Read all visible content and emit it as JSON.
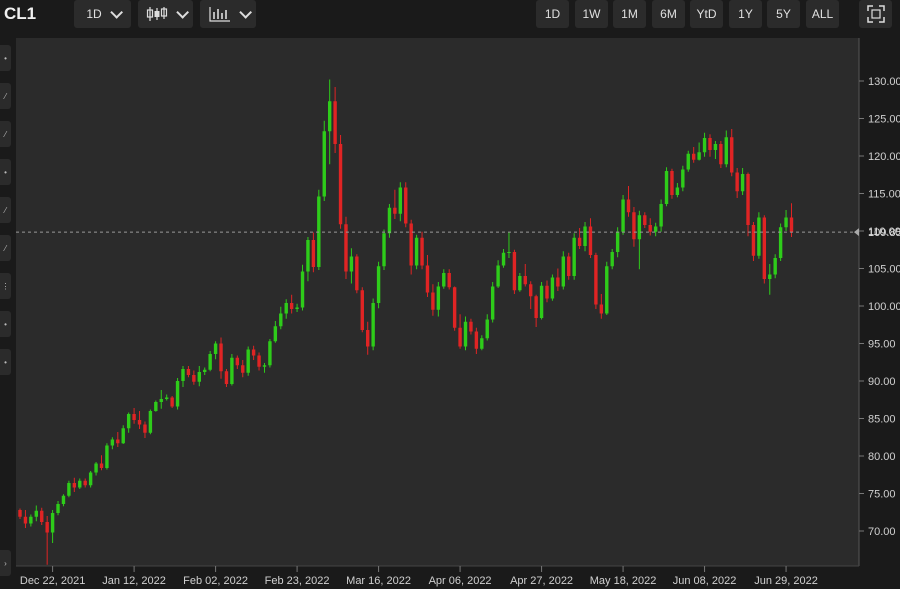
{
  "toolbar": {
    "symbol": "CL1",
    "interval_label": "1D",
    "ranges": [
      "1D",
      "1W",
      "1M",
      "6M",
      "YtD",
      "1Y",
      "5Y",
      "ALL"
    ]
  },
  "icons": {
    "candlestick": "candlestick-icon",
    "indicator": "indicator-icon",
    "fullscreen": "fullscreen-icon"
  },
  "colors": {
    "up": "#2ecc1a",
    "down": "#e02424",
    "background": "#2b2b2b",
    "grid": "#3a3a3a"
  },
  "chart_data": {
    "type": "candlestick",
    "ylim": [
      64,
      134
    ],
    "yticks": [
      70,
      75,
      80,
      85,
      90,
      95,
      100,
      105,
      110,
      115,
      120,
      125,
      130
    ],
    "xtick_labels": [
      "Dec 22, 2021",
      "Jan 12, 2022",
      "Feb 02, 2022",
      "Feb 23, 2022",
      "Mar 16, 2022",
      "Apr 06, 2022",
      "Apr 27, 2022",
      "May 18, 2022",
      "Jun 08, 2022",
      "Jun 29, 2022"
    ],
    "xtick_index": [
      6,
      21,
      36,
      51,
      66,
      81,
      96,
      111,
      126,
      141
    ],
    "last_price": "109.85",
    "last_value": 109.85,
    "grid": false,
    "candles": [
      [
        72.8,
        73.0,
        71.6,
        71.9
      ],
      [
        71.9,
        72.8,
        70.4,
        71.0
      ],
      [
        71.0,
        72.2,
        70.6,
        71.9
      ],
      [
        71.9,
        73.4,
        71.3,
        72.7
      ],
      [
        72.7,
        73.1,
        70.8,
        71.2
      ],
      [
        71.2,
        72.0,
        65.5,
        69.8
      ],
      [
        69.8,
        72.8,
        68.4,
        72.4
      ],
      [
        72.4,
        74.0,
        72.1,
        73.6
      ],
      [
        73.6,
        74.9,
        73.3,
        74.7
      ],
      [
        74.7,
        76.7,
        74.5,
        76.4
      ],
      [
        76.4,
        77.1,
        75.2,
        75.8
      ],
      [
        75.8,
        77.0,
        75.6,
        76.7
      ],
      [
        76.7,
        77.0,
        75.8,
        76.1
      ],
      [
        76.1,
        78.0,
        75.8,
        77.8
      ],
      [
        77.8,
        79.2,
        77.4,
        79.0
      ],
      [
        79.0,
        80.1,
        78.1,
        78.4
      ],
      [
        78.4,
        81.7,
        78.2,
        81.4
      ],
      [
        81.4,
        82.5,
        80.9,
        82.2
      ],
      [
        82.2,
        83.2,
        81.2,
        81.7
      ],
      [
        81.7,
        84.1,
        81.6,
        83.7
      ],
      [
        83.7,
        85.8,
        83.1,
        85.6
      ],
      [
        85.6,
        86.4,
        84.3,
        84.8
      ],
      [
        84.8,
        86.0,
        83.6,
        84.2
      ],
      [
        84.2,
        84.6,
        82.4,
        83.1
      ],
      [
        83.1,
        86.2,
        82.9,
        86.0
      ],
      [
        86.0,
        87.4,
        85.9,
        87.2
      ],
      [
        87.2,
        88.8,
        86.3,
        87.6
      ],
      [
        87.6,
        88.2,
        87.4,
        87.8
      ],
      [
        87.8,
        88.0,
        86.4,
        86.6
      ],
      [
        86.6,
        90.4,
        86.2,
        90.0
      ],
      [
        90.0,
        92.0,
        89.2,
        91.6
      ],
      [
        91.6,
        92.0,
        90.5,
        90.8
      ],
      [
        90.8,
        91.4,
        89.5,
        89.9
      ],
      [
        89.9,
        92.0,
        89.3,
        91.2
      ],
      [
        91.2,
        91.8,
        90.8,
        91.5
      ],
      [
        91.5,
        94.0,
        91.3,
        93.6
      ],
      [
        93.6,
        95.3,
        92.9,
        95.0
      ],
      [
        95.0,
        95.8,
        90.3,
        91.3
      ],
      [
        91.3,
        91.6,
        89.2,
        89.6
      ],
      [
        89.6,
        93.6,
        89.4,
        93.1
      ],
      [
        93.1,
        93.4,
        91.6,
        92.1
      ],
      [
        92.1,
        92.8,
        90.5,
        91.1
      ],
      [
        91.1,
        94.6,
        90.7,
        94.2
      ],
      [
        94.2,
        94.7,
        92.8,
        93.4
      ],
      [
        93.4,
        93.8,
        91.4,
        91.9
      ],
      [
        91.9,
        92.4,
        91.1,
        92.1
      ],
      [
        92.1,
        95.6,
        91.8,
        95.3
      ],
      [
        95.3,
        98.0,
        95.1,
        97.3
      ],
      [
        97.3,
        99.9,
        96.9,
        99.0
      ],
      [
        99.0,
        100.9,
        98.3,
        100.4
      ],
      [
        100.4,
        101.5,
        99.0,
        99.6
      ],
      [
        99.6,
        100.3,
        99.2,
        99.8
      ],
      [
        99.8,
        105.5,
        99.4,
        104.6
      ],
      [
        104.6,
        109.2,
        103.3,
        108.8
      ],
      [
        108.8,
        109.8,
        104.5,
        105.2
      ],
      [
        105.2,
        115.5,
        104.8,
        114.6
      ],
      [
        114.6,
        124.7,
        114.0,
        123.3
      ],
      [
        123.3,
        130.2,
        118.9,
        127.3
      ],
      [
        127.3,
        129.2,
        120.4,
        121.6
      ],
      [
        121.6,
        122.8,
        110.3,
        110.9
      ],
      [
        110.9,
        111.9,
        103.6,
        104.6
      ],
      [
        104.6,
        107.7,
        103.0,
        106.6
      ],
      [
        106.6,
        106.9,
        101.7,
        102.1
      ],
      [
        102.1,
        102.5,
        96.5,
        96.8
      ],
      [
        96.8,
        97.9,
        93.5,
        94.6
      ],
      [
        94.6,
        101.0,
        94.1,
        100.4
      ],
      [
        100.4,
        105.9,
        99.7,
        105.3
      ],
      [
        105.3,
        110.2,
        104.8,
        109.7
      ],
      [
        109.7,
        113.6,
        109.1,
        113.1
      ],
      [
        113.1,
        115.5,
        111.6,
        112.3
      ],
      [
        112.3,
        116.5,
        111.3,
        115.8
      ],
      [
        115.8,
        116.5,
        110.5,
        111.0
      ],
      [
        111.0,
        111.5,
        104.2,
        105.4
      ],
      [
        105.4,
        109.5,
        104.9,
        109.1
      ],
      [
        109.1,
        109.9,
        104.9,
        105.4
      ],
      [
        105.4,
        106.8,
        101.2,
        101.8
      ],
      [
        101.8,
        102.9,
        98.7,
        99.5
      ],
      [
        99.5,
        103.2,
        98.6,
        102.6
      ],
      [
        102.6,
        104.9,
        102.3,
        104.4
      ],
      [
        104.4,
        104.9,
        102.2,
        102.5
      ],
      [
        102.5,
        102.6,
        96.7,
        97.1
      ],
      [
        97.1,
        98.9,
        94.3,
        94.6
      ],
      [
        94.6,
        98.6,
        94.1,
        97.9
      ],
      [
        97.9,
        98.3,
        96.2,
        96.6
      ],
      [
        96.6,
        97.1,
        93.6,
        94.3
      ],
      [
        94.3,
        96.1,
        94.1,
        95.7
      ],
      [
        95.7,
        98.9,
        95.4,
        98.2
      ],
      [
        98.2,
        103.2,
        97.8,
        102.6
      ],
      [
        102.6,
        106.1,
        102.4,
        105.4
      ],
      [
        105.4,
        107.6,
        105.1,
        107.1
      ],
      [
        107.1,
        109.8,
        106.4,
        107.2
      ],
      [
        107.2,
        107.5,
        101.6,
        102.1
      ],
      [
        102.1,
        104.4,
        101.9,
        104.0
      ],
      [
        104.0,
        105.6,
        102.6,
        102.9
      ],
      [
        102.9,
        103.3,
        99.6,
        101.3
      ],
      [
        101.3,
        101.5,
        97.2,
        98.4
      ],
      [
        98.4,
        103.2,
        98.2,
        102.7
      ],
      [
        102.7,
        103.4,
        100.5,
        101.0
      ],
      [
        101.0,
        104.2,
        100.7,
        103.8
      ],
      [
        103.8,
        105.0,
        102.0,
        102.6
      ],
      [
        102.6,
        107.3,
        102.2,
        106.6
      ],
      [
        106.6,
        107.1,
        103.5,
        104.0
      ],
      [
        104.0,
        109.7,
        103.5,
        109.1
      ],
      [
        109.1,
        110.4,
        107.6,
        108.0
      ],
      [
        108.0,
        111.2,
        107.3,
        110.6
      ],
      [
        110.6,
        111.7,
        106.4,
        106.8
      ],
      [
        106.8,
        107.1,
        99.6,
        100.2
      ],
      [
        100.2,
        101.6,
        98.3,
        99.0
      ],
      [
        99.0,
        105.9,
        98.8,
        105.3
      ],
      [
        105.3,
        107.6,
        104.9,
        107.2
      ],
      [
        107.2,
        110.5,
        106.5,
        109.9
      ],
      [
        109.9,
        114.8,
        109.5,
        114.2
      ],
      [
        114.2,
        116.0,
        111.9,
        112.5
      ],
      [
        112.5,
        113.2,
        107.9,
        108.9
      ],
      [
        108.9,
        112.7,
        104.9,
        112.1
      ],
      [
        112.1,
        112.5,
        110.4,
        110.8
      ],
      [
        110.8,
        111.7,
        109.4,
        109.9
      ],
      [
        109.9,
        111.1,
        109.3,
        110.6
      ],
      [
        110.6,
        114.2,
        109.9,
        113.6
      ],
      [
        113.6,
        118.5,
        113.3,
        118.0
      ],
      [
        118.0,
        118.3,
        114.3,
        114.8
      ],
      [
        114.8,
        116.4,
        114.5,
        115.8
      ],
      [
        115.8,
        118.7,
        115.3,
        118.2
      ],
      [
        118.2,
        120.7,
        117.9,
        120.3
      ],
      [
        120.3,
        121.2,
        119.1,
        119.5
      ],
      [
        119.5,
        121.8,
        119.4,
        120.5
      ],
      [
        120.5,
        123.1,
        119.9,
        122.4
      ],
      [
        122.4,
        122.9,
        119.9,
        120.8
      ],
      [
        120.8,
        122.0,
        119.6,
        121.6
      ],
      [
        121.6,
        122.0,
        118.4,
        118.9
      ],
      [
        118.9,
        123.4,
        118.5,
        122.5
      ],
      [
        122.5,
        123.6,
        117.3,
        117.8
      ],
      [
        117.8,
        118.4,
        114.4,
        115.3
      ],
      [
        115.3,
        118.4,
        114.8,
        117.6
      ],
      [
        117.6,
        117.8,
        109.3,
        110.8
      ],
      [
        110.8,
        111.2,
        106.0,
        106.7
      ],
      [
        106.7,
        112.5,
        106.3,
        111.8
      ],
      [
        111.8,
        112.1,
        103.0,
        103.6
      ],
      [
        103.6,
        105.6,
        101.5,
        104.2
      ],
      [
        104.2,
        106.9,
        103.7,
        106.4
      ],
      [
        106.4,
        111.0,
        106.0,
        110.5
      ],
      [
        110.5,
        112.8,
        110.0,
        111.8
      ],
      [
        111.8,
        113.7,
        109.2,
        109.85
      ]
    ]
  }
}
